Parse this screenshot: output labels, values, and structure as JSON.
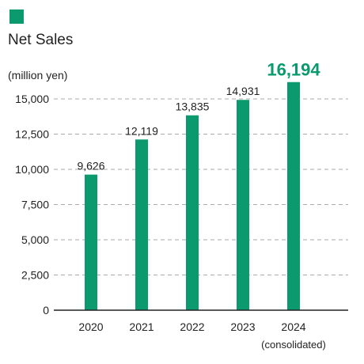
{
  "chart_data": {
    "type": "bar",
    "title": "Net Sales",
    "ylabel": "(million yen)",
    "categories": [
      "2020",
      "2021",
      "2022",
      "2023",
      "2024"
    ],
    "values": [
      9626,
      12119,
      13835,
      14931,
      16194
    ],
    "value_labels": [
      "9,626",
      "12,119",
      "13,835",
      "14,931",
      "16,194"
    ],
    "highlight_index": 4,
    "category_note": "(consolidated)",
    "ylim": [
      0,
      16500
    ],
    "yticks": [
      0,
      2500,
      5000,
      7500,
      10000,
      12500,
      15000
    ],
    "ytick_labels": [
      "0",
      "2,500",
      "5,000",
      "7,500",
      "10,000",
      "12,500",
      "15,000"
    ],
    "grid": true,
    "bar_color": "#0a9a6d",
    "highlight_label_color": "#0a9a6d",
    "legend_swatch_color": "#0a9a6d"
  }
}
